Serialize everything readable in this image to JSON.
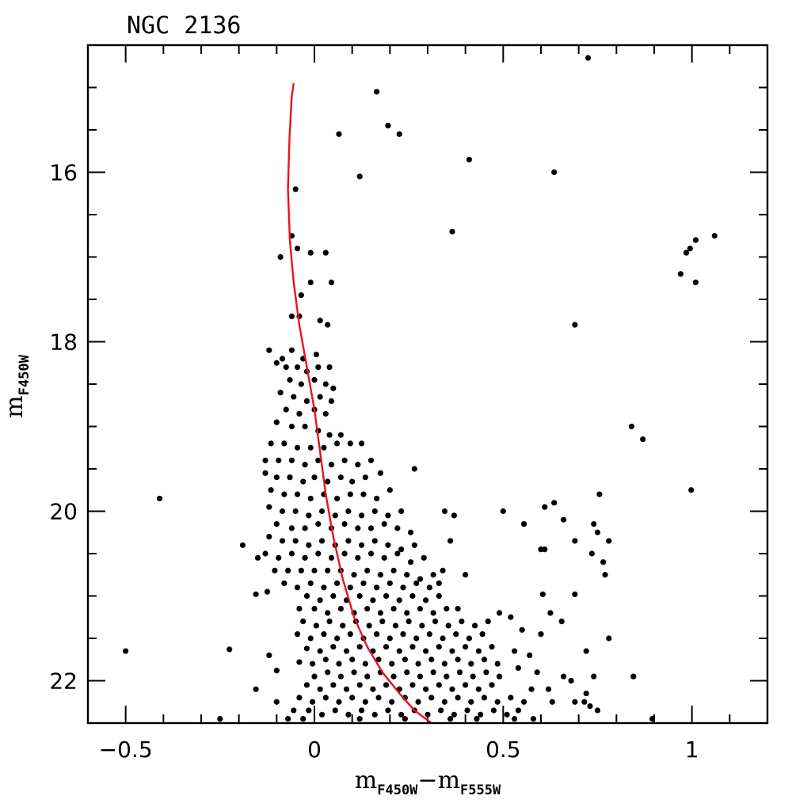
{
  "chart_data": {
    "type": "scatter",
    "title": "NGC 2136",
    "xlabel": {
      "main": "m",
      "sub1": "F450W",
      "minus": "−",
      "main2": "m",
      "sub2": "F555W"
    },
    "ylabel": {
      "main": "m",
      "sub": "F450W"
    },
    "xlim": [
      -0.6,
      1.2
    ],
    "ylim": [
      22.5,
      14.5
    ],
    "y_inverted": true,
    "x_major_ticks": [
      -0.5,
      0,
      0.5,
      1
    ],
    "x_tick_labels": [
      "−0.5",
      "0",
      "0.5",
      "1"
    ],
    "x_minor_step": 0.1,
    "y_major_ticks": [
      16,
      18,
      20,
      22
    ],
    "y_tick_labels": [
      "16",
      "18",
      "20",
      "22"
    ],
    "y_minor_step": 0.5,
    "grid": false,
    "legend": "none",
    "colors": {
      "points": "#000000",
      "isochrone": "#e8141c",
      "frame": "#000000"
    },
    "isochrone": {
      "x": [
        -0.055,
        -0.06,
        -0.066,
        -0.07,
        -0.065,
        -0.055,
        -0.04,
        -0.02,
        0.0,
        0.015,
        0.03,
        0.05,
        0.075,
        0.105,
        0.14,
        0.18,
        0.225,
        0.265,
        0.31
      ],
      "y": [
        14.95,
        15.1,
        15.6,
        16.2,
        16.8,
        17.3,
        17.8,
        18.3,
        18.8,
        19.3,
        19.8,
        20.3,
        20.8,
        21.25,
        21.6,
        21.9,
        22.15,
        22.35,
        22.55
      ]
    },
    "points": [
      [
        0.725,
        14.65
      ],
      [
        0.165,
        15.05
      ],
      [
        0.195,
        15.45
      ],
      [
        0.225,
        15.55
      ],
      [
        0.065,
        15.55
      ],
      [
        0.41,
        15.85
      ],
      [
        0.635,
        16.0
      ],
      [
        0.12,
        16.05
      ],
      [
        -0.05,
        16.2
      ],
      [
        0.365,
        16.7
      ],
      [
        -0.06,
        16.75
      ],
      [
        1.06,
        16.75
      ],
      [
        1.01,
        16.8
      ],
      [
        0.995,
        16.9
      ],
      [
        0.985,
        16.95
      ],
      [
        -0.045,
        16.9
      ],
      [
        -0.01,
        16.95
      ],
      [
        0.03,
        16.95
      ],
      [
        -0.09,
        17.0
      ],
      [
        0.97,
        17.2
      ],
      [
        1.01,
        17.3
      ],
      [
        -0.01,
        17.3
      ],
      [
        0.045,
        17.3
      ],
      [
        -0.035,
        17.45
      ],
      [
        0.69,
        17.8
      ],
      [
        -0.06,
        17.7
      ],
      [
        -0.04,
        17.7
      ],
      [
        0.015,
        17.75
      ],
      [
        0.035,
        17.8
      ],
      [
        -0.12,
        18.1
      ],
      [
        -0.085,
        18.2
      ],
      [
        -0.06,
        18.1
      ],
      [
        -0.03,
        18.2
      ],
      [
        0.005,
        18.15
      ],
      [
        -0.1,
        18.25
      ],
      [
        -0.075,
        18.3
      ],
      [
        -0.045,
        18.3
      ],
      [
        -0.02,
        18.35
      ],
      [
        0.01,
        18.3
      ],
      [
        0.04,
        18.3
      ],
      [
        -0.065,
        18.45
      ],
      [
        -0.035,
        18.5
      ],
      [
        0.0,
        18.45
      ],
      [
        0.03,
        18.5
      ],
      [
        0.05,
        18.55
      ],
      [
        -0.09,
        18.6
      ],
      [
        -0.055,
        18.65
      ],
      [
        -0.02,
        18.7
      ],
      [
        0.015,
        18.65
      ],
      [
        0.045,
        18.7
      ],
      [
        -0.075,
        18.8
      ],
      [
        -0.04,
        18.85
      ],
      [
        0.0,
        18.8
      ],
      [
        0.03,
        18.85
      ],
      [
        -0.1,
        18.95
      ],
      [
        -0.06,
        19.0
      ],
      [
        -0.025,
        19.0
      ],
      [
        0.01,
        19.05
      ],
      [
        0.04,
        19.1
      ],
      [
        0.07,
        19.1
      ],
      [
        -0.115,
        19.2
      ],
      [
        -0.08,
        19.2
      ],
      [
        -0.045,
        19.25
      ],
      [
        -0.01,
        19.25
      ],
      [
        0.025,
        19.25
      ],
      [
        0.06,
        19.2
      ],
      [
        0.095,
        19.2
      ],
      [
        0.125,
        19.2
      ],
      [
        -0.13,
        19.4
      ],
      [
        -0.095,
        19.4
      ],
      [
        -0.06,
        19.4
      ],
      [
        -0.025,
        19.45
      ],
      [
        0.01,
        19.4
      ],
      [
        0.045,
        19.45
      ],
      [
        0.08,
        19.4
      ],
      [
        0.115,
        19.45
      ],
      [
        0.15,
        19.4
      ],
      [
        0.265,
        19.5
      ],
      [
        -0.13,
        19.55
      ],
      [
        -0.1,
        19.6
      ],
      [
        -0.065,
        19.6
      ],
      [
        -0.03,
        19.65
      ],
      [
        0.0,
        19.6
      ],
      [
        0.035,
        19.65
      ],
      [
        0.07,
        19.6
      ],
      [
        0.1,
        19.65
      ],
      [
        0.135,
        19.6
      ],
      [
        0.175,
        19.55
      ],
      [
        -0.115,
        19.75
      ],
      [
        -0.08,
        19.8
      ],
      [
        -0.045,
        19.8
      ],
      [
        -0.01,
        19.85
      ],
      [
        0.025,
        19.8
      ],
      [
        0.06,
        19.85
      ],
      [
        0.095,
        19.8
      ],
      [
        0.13,
        19.8
      ],
      [
        0.165,
        19.85
      ],
      [
        0.2,
        19.75
      ],
      [
        -0.41,
        19.85
      ],
      [
        0.635,
        19.9
      ],
      [
        0.61,
        19.95
      ],
      [
        0.755,
        19.8
      ],
      [
        0.998,
        19.75
      ],
      [
        0.5,
        20.0
      ],
      [
        0.345,
        20.0
      ],
      [
        0.37,
        20.05
      ],
      [
        -0.12,
        19.95
      ],
      [
        -0.085,
        20.0
      ],
      [
        -0.05,
        20.0
      ],
      [
        -0.015,
        20.05
      ],
      [
        0.02,
        20.0
      ],
      [
        0.055,
        20.05
      ],
      [
        0.09,
        20.0
      ],
      [
        0.125,
        20.05
      ],
      [
        0.16,
        20.0
      ],
      [
        0.195,
        20.05
      ],
      [
        0.23,
        20.0
      ],
      [
        -0.1,
        20.15
      ],
      [
        -0.06,
        20.2
      ],
      [
        -0.025,
        20.2
      ],
      [
        0.01,
        20.15
      ],
      [
        0.045,
        20.2
      ],
      [
        0.08,
        20.15
      ],
      [
        0.115,
        20.2
      ],
      [
        0.15,
        20.2
      ],
      [
        0.185,
        20.15
      ],
      [
        0.22,
        20.2
      ],
      [
        0.255,
        20.25
      ],
      [
        0.555,
        20.15
      ],
      [
        0.66,
        20.1
      ],
      [
        0.74,
        20.15
      ],
      [
        0.75,
        20.25
      ],
      [
        0.69,
        20.35
      ],
      [
        0.78,
        20.35
      ],
      [
        0.36,
        20.35
      ],
      [
        -0.12,
        20.3
      ],
      [
        -0.085,
        20.35
      ],
      [
        -0.05,
        20.35
      ],
      [
        -0.015,
        20.4
      ],
      [
        0.02,
        20.35
      ],
      [
        0.055,
        20.4
      ],
      [
        0.09,
        20.35
      ],
      [
        0.125,
        20.4
      ],
      [
        0.16,
        20.35
      ],
      [
        0.195,
        20.4
      ],
      [
        0.23,
        20.45
      ],
      [
        0.265,
        20.4
      ],
      [
        -0.19,
        20.4
      ],
      [
        0.61,
        20.45
      ],
      [
        0.6,
        20.45
      ],
      [
        -0.13,
        20.5
      ],
      [
        -0.095,
        20.55
      ],
      [
        -0.06,
        20.5
      ],
      [
        -0.025,
        20.55
      ],
      [
        0.01,
        20.5
      ],
      [
        0.045,
        20.55
      ],
      [
        0.08,
        20.5
      ],
      [
        0.115,
        20.55
      ],
      [
        0.15,
        20.5
      ],
      [
        0.185,
        20.55
      ],
      [
        0.22,
        20.5
      ],
      [
        0.255,
        20.6
      ],
      [
        0.29,
        20.55
      ],
      [
        0.735,
        20.5
      ],
      [
        0.765,
        20.6
      ],
      [
        -0.15,
        20.55
      ],
      [
        -0.105,
        20.7
      ],
      [
        -0.07,
        20.7
      ],
      [
        -0.035,
        20.7
      ],
      [
        0.0,
        20.7
      ],
      [
        0.035,
        20.7
      ],
      [
        0.07,
        20.7
      ],
      [
        0.105,
        20.75
      ],
      [
        0.14,
        20.7
      ],
      [
        0.175,
        20.75
      ],
      [
        0.21,
        20.7
      ],
      [
        0.245,
        20.75
      ],
      [
        0.28,
        20.8
      ],
      [
        0.315,
        20.75
      ],
      [
        0.34,
        20.7
      ],
      [
        0.77,
        20.75
      ],
      [
        0.4,
        20.75
      ],
      [
        -0.08,
        20.85
      ],
      [
        -0.045,
        20.9
      ],
      [
        -0.01,
        20.85
      ],
      [
        0.025,
        20.9
      ],
      [
        0.06,
        20.85
      ],
      [
        0.095,
        20.9
      ],
      [
        0.13,
        20.85
      ],
      [
        0.165,
        20.9
      ],
      [
        0.2,
        20.85
      ],
      [
        0.235,
        20.9
      ],
      [
        0.27,
        20.85
      ],
      [
        0.305,
        20.9
      ],
      [
        0.33,
        20.85
      ],
      [
        -0.125,
        20.95
      ],
      [
        -0.155,
        20.98
      ],
      [
        0.605,
        20.98
      ],
      [
        0.69,
        20.98
      ],
      [
        -0.02,
        21.0
      ],
      [
        0.015,
        21.05
      ],
      [
        0.05,
        21.0
      ],
      [
        0.085,
        21.05
      ],
      [
        0.12,
        21.0
      ],
      [
        0.155,
        21.05
      ],
      [
        0.19,
        21.0
      ],
      [
        0.225,
        21.05
      ],
      [
        0.26,
        21.0
      ],
      [
        0.295,
        21.05
      ],
      [
        0.33,
        21.0
      ],
      [
        -0.04,
        21.15
      ],
      [
        0.0,
        21.15
      ],
      [
        0.035,
        21.2
      ],
      [
        0.07,
        21.15
      ],
      [
        0.105,
        21.2
      ],
      [
        0.14,
        21.15
      ],
      [
        0.175,
        21.2
      ],
      [
        0.21,
        21.15
      ],
      [
        0.245,
        21.2
      ],
      [
        0.28,
        21.15
      ],
      [
        0.315,
        21.2
      ],
      [
        0.35,
        21.15
      ],
      [
        0.38,
        21.15
      ],
      [
        0.49,
        21.2
      ],
      [
        0.52,
        21.25
      ],
      [
        0.625,
        21.2
      ],
      [
        0.655,
        21.3
      ],
      [
        -0.03,
        21.3
      ],
      [
        0.005,
        21.35
      ],
      [
        0.04,
        21.3
      ],
      [
        0.075,
        21.35
      ],
      [
        0.11,
        21.3
      ],
      [
        0.145,
        21.35
      ],
      [
        0.18,
        21.3
      ],
      [
        0.215,
        21.35
      ],
      [
        0.25,
        21.3
      ],
      [
        0.285,
        21.35
      ],
      [
        0.32,
        21.3
      ],
      [
        0.355,
        21.35
      ],
      [
        0.39,
        21.3
      ],
      [
        0.425,
        21.35
      ],
      [
        0.46,
        21.3
      ],
      [
        -0.045,
        21.45
      ],
      [
        -0.01,
        21.5
      ],
      [
        0.025,
        21.45
      ],
      [
        0.06,
        21.5
      ],
      [
        0.095,
        21.45
      ],
      [
        0.13,
        21.5
      ],
      [
        0.165,
        21.45
      ],
      [
        0.2,
        21.5
      ],
      [
        0.235,
        21.45
      ],
      [
        0.27,
        21.5
      ],
      [
        0.305,
        21.45
      ],
      [
        0.34,
        21.5
      ],
      [
        0.375,
        21.45
      ],
      [
        0.41,
        21.5
      ],
      [
        0.445,
        21.45
      ],
      [
        0.55,
        21.4
      ],
      [
        0.6,
        21.45
      ],
      [
        0.78,
        21.5
      ],
      [
        -0.5,
        21.65
      ],
      [
        -0.225,
        21.63
      ],
      [
        -0.02,
        21.62
      ],
      [
        0.015,
        21.65
      ],
      [
        0.05,
        21.6
      ],
      [
        0.085,
        21.65
      ],
      [
        0.12,
        21.6
      ],
      [
        0.155,
        21.65
      ],
      [
        0.19,
        21.6
      ],
      [
        0.225,
        21.65
      ],
      [
        0.26,
        21.6
      ],
      [
        0.295,
        21.65
      ],
      [
        0.33,
        21.6
      ],
      [
        0.365,
        21.65
      ],
      [
        0.4,
        21.6
      ],
      [
        0.435,
        21.65
      ],
      [
        0.47,
        21.6
      ],
      [
        0.53,
        21.65
      ],
      [
        0.57,
        21.7
      ],
      [
        0.72,
        21.65
      ],
      [
        -0.12,
        21.7
      ],
      [
        -0.04,
        21.78
      ],
      [
        -0.005,
        21.8
      ],
      [
        0.03,
        21.75
      ],
      [
        0.065,
        21.8
      ],
      [
        0.1,
        21.75
      ],
      [
        0.135,
        21.8
      ],
      [
        0.17,
        21.75
      ],
      [
        0.205,
        21.8
      ],
      [
        0.24,
        21.75
      ],
      [
        0.275,
        21.8
      ],
      [
        0.31,
        21.75
      ],
      [
        0.345,
        21.8
      ],
      [
        0.38,
        21.75
      ],
      [
        0.415,
        21.8
      ],
      [
        0.45,
        21.75
      ],
      [
        0.485,
        21.8
      ],
      [
        0.54,
        21.85
      ],
      [
        0.59,
        21.9
      ],
      [
        -0.1,
        21.88
      ],
      [
        0.0,
        21.95
      ],
      [
        0.035,
        21.9
      ],
      [
        0.07,
        21.95
      ],
      [
        0.105,
        21.9
      ],
      [
        0.14,
        21.95
      ],
      [
        0.175,
        21.9
      ],
      [
        0.21,
        21.95
      ],
      [
        0.245,
        21.9
      ],
      [
        0.28,
        21.95
      ],
      [
        0.315,
        21.9
      ],
      [
        0.35,
        21.95
      ],
      [
        0.385,
        21.9
      ],
      [
        0.42,
        21.95
      ],
      [
        0.455,
        21.9
      ],
      [
        0.49,
        21.95
      ],
      [
        0.66,
        21.95
      ],
      [
        0.68,
        22.0
      ],
      [
        0.74,
        21.95
      ],
      [
        0.845,
        21.95
      ],
      [
        -0.155,
        22.1
      ],
      [
        -0.02,
        22.05
      ],
      [
        0.015,
        22.1
      ],
      [
        0.05,
        22.05
      ],
      [
        0.085,
        22.1
      ],
      [
        0.12,
        22.05
      ],
      [
        0.155,
        22.1
      ],
      [
        0.19,
        22.05
      ],
      [
        0.225,
        22.1
      ],
      [
        0.26,
        22.05
      ],
      [
        0.295,
        22.1
      ],
      [
        0.33,
        22.05
      ],
      [
        0.365,
        22.1
      ],
      [
        0.4,
        22.05
      ],
      [
        0.435,
        22.1
      ],
      [
        0.47,
        22.05
      ],
      [
        0.575,
        22.1
      ],
      [
        0.62,
        22.1
      ],
      [
        0.72,
        22.15
      ],
      [
        -0.1,
        22.25
      ],
      [
        -0.04,
        22.2
      ],
      [
        -0.005,
        22.25
      ],
      [
        0.03,
        22.2
      ],
      [
        0.065,
        22.25
      ],
      [
        0.1,
        22.2
      ],
      [
        0.135,
        22.25
      ],
      [
        0.17,
        22.2
      ],
      [
        0.205,
        22.25
      ],
      [
        0.24,
        22.2
      ],
      [
        0.275,
        22.25
      ],
      [
        0.31,
        22.2
      ],
      [
        0.345,
        22.25
      ],
      [
        0.38,
        22.2
      ],
      [
        0.415,
        22.25
      ],
      [
        0.45,
        22.2
      ],
      [
        0.485,
        22.25
      ],
      [
        0.52,
        22.2
      ],
      [
        0.555,
        22.25
      ],
      [
        0.63,
        22.25
      ],
      [
        0.69,
        22.25
      ],
      [
        0.715,
        22.25
      ],
      [
        0.73,
        22.3
      ],
      [
        -0.055,
        22.35
      ],
      [
        -0.015,
        22.35
      ],
      [
        0.02,
        22.4
      ],
      [
        0.055,
        22.35
      ],
      [
        0.09,
        22.4
      ],
      [
        0.125,
        22.35
      ],
      [
        0.16,
        22.4
      ],
      [
        0.195,
        22.35
      ],
      [
        0.23,
        22.4
      ],
      [
        0.265,
        22.35
      ],
      [
        0.3,
        22.4
      ],
      [
        0.335,
        22.35
      ],
      [
        0.37,
        22.4
      ],
      [
        0.405,
        22.35
      ],
      [
        0.44,
        22.4
      ],
      [
        0.475,
        22.35
      ],
      [
        0.51,
        22.4
      ],
      [
        0.54,
        22.35
      ],
      [
        0.75,
        22.35
      ],
      [
        -0.25,
        22.45
      ],
      [
        -0.07,
        22.45
      ],
      [
        -0.03,
        22.45
      ],
      [
        0.12,
        22.45
      ],
      [
        0.24,
        22.45
      ],
      [
        0.36,
        22.45
      ],
      [
        0.43,
        22.45
      ],
      [
        0.53,
        22.45
      ],
      [
        0.58,
        22.45
      ],
      [
        0.895,
        22.45
      ],
      [
        0.84,
        19.0
      ],
      [
        0.87,
        19.15
      ]
    ]
  }
}
